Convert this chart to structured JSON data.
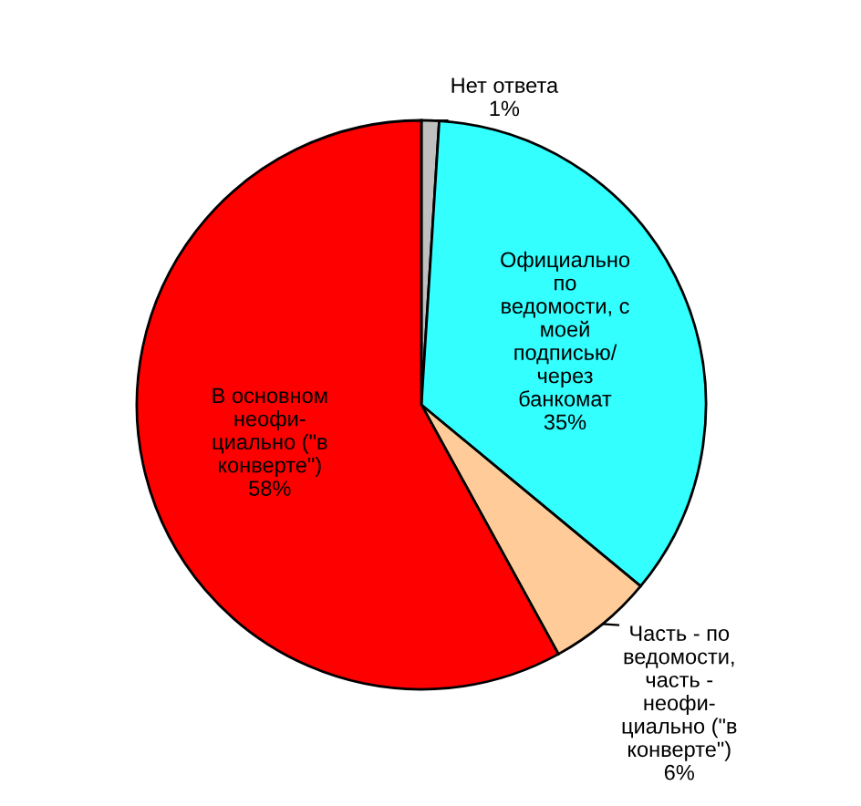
{
  "chart_data": {
    "type": "pie",
    "categories": [
      "Нет ответа",
      "Официально\nпо\nведомости, с\nмоей\nподписью/\nчерез\nбанкомат",
      "Часть - по\nведомости,\nчасть -\nнеофи-\nциально (\"в\nконверте\")",
      "В основном\nнеофи-\nциально (\"в\nконверте\")"
    ],
    "values": [
      1,
      35,
      6,
      58
    ],
    "value_labels": [
      "1%",
      "35%",
      "6%",
      "58%"
    ],
    "colors": [
      "#c0c0c0",
      "#33ffff",
      "#ffcc99",
      "#ff0000"
    ]
  }
}
